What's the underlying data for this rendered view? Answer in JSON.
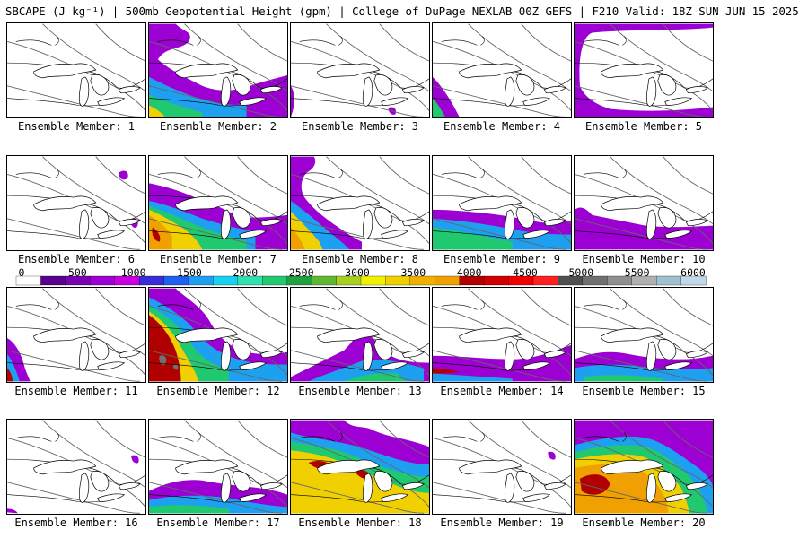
{
  "title": "SBCAPE (J kg⁻¹) | 500mb Geopotential Height (gpm) | College of DuPage NEXLAB 00Z GEFS | F210 Valid: 18Z SUN JUN 15 2025",
  "colorbar": {
    "labels": [
      "0",
      "500",
      "1000",
      "1500",
      "2000",
      "2500",
      "3000",
      "3500",
      "4000",
      "4500",
      "5000",
      "5500",
      "6000"
    ],
    "colors": [
      "#ffffff",
      "#5a0090",
      "#7a00b4",
      "#9c00d2",
      "#c800e0",
      "#3a2cd8",
      "#2060f0",
      "#1ea0f0",
      "#18d0f0",
      "#30e0b0",
      "#20c870",
      "#20a040",
      "#60b830",
      "#a8d020",
      "#f0f000",
      "#f0d000",
      "#f0b000",
      "#f0a000",
      "#b00000",
      "#d00000",
      "#f00000",
      "#ff2020",
      "#505050",
      "#707070",
      "#909090",
      "#b0b0b0",
      "#a0c0d0",
      "#c0d8e8"
    ]
  },
  "members": [
    {
      "label": "Ensemble Member: 1"
    },
    {
      "label": "Ensemble Member: 2"
    },
    {
      "label": "Ensemble Member: 3"
    },
    {
      "label": "Ensemble Member: 4"
    },
    {
      "label": "Ensemble Member: 5"
    },
    {
      "label": "Ensemble Member: 6"
    },
    {
      "label": "Ensemble Member: 7"
    },
    {
      "label": "Ensemble Member: 8"
    },
    {
      "label": "Ensemble Member: 9"
    },
    {
      "label": "Ensemble Member: 10"
    },
    {
      "label": "Ensemble Member: 11"
    },
    {
      "label": "Ensemble Member: 12"
    },
    {
      "label": "Ensemble Member: 13"
    },
    {
      "label": "Ensemble Member: 14"
    },
    {
      "label": "Ensemble Member: 15"
    },
    {
      "label": "Ensemble Member: 16"
    },
    {
      "label": "Ensemble Member: 17"
    },
    {
      "label": "Ensemble Member: 18"
    },
    {
      "label": "Ensemble Member: 19"
    },
    {
      "label": "Ensemble Member: 20"
    }
  ]
}
